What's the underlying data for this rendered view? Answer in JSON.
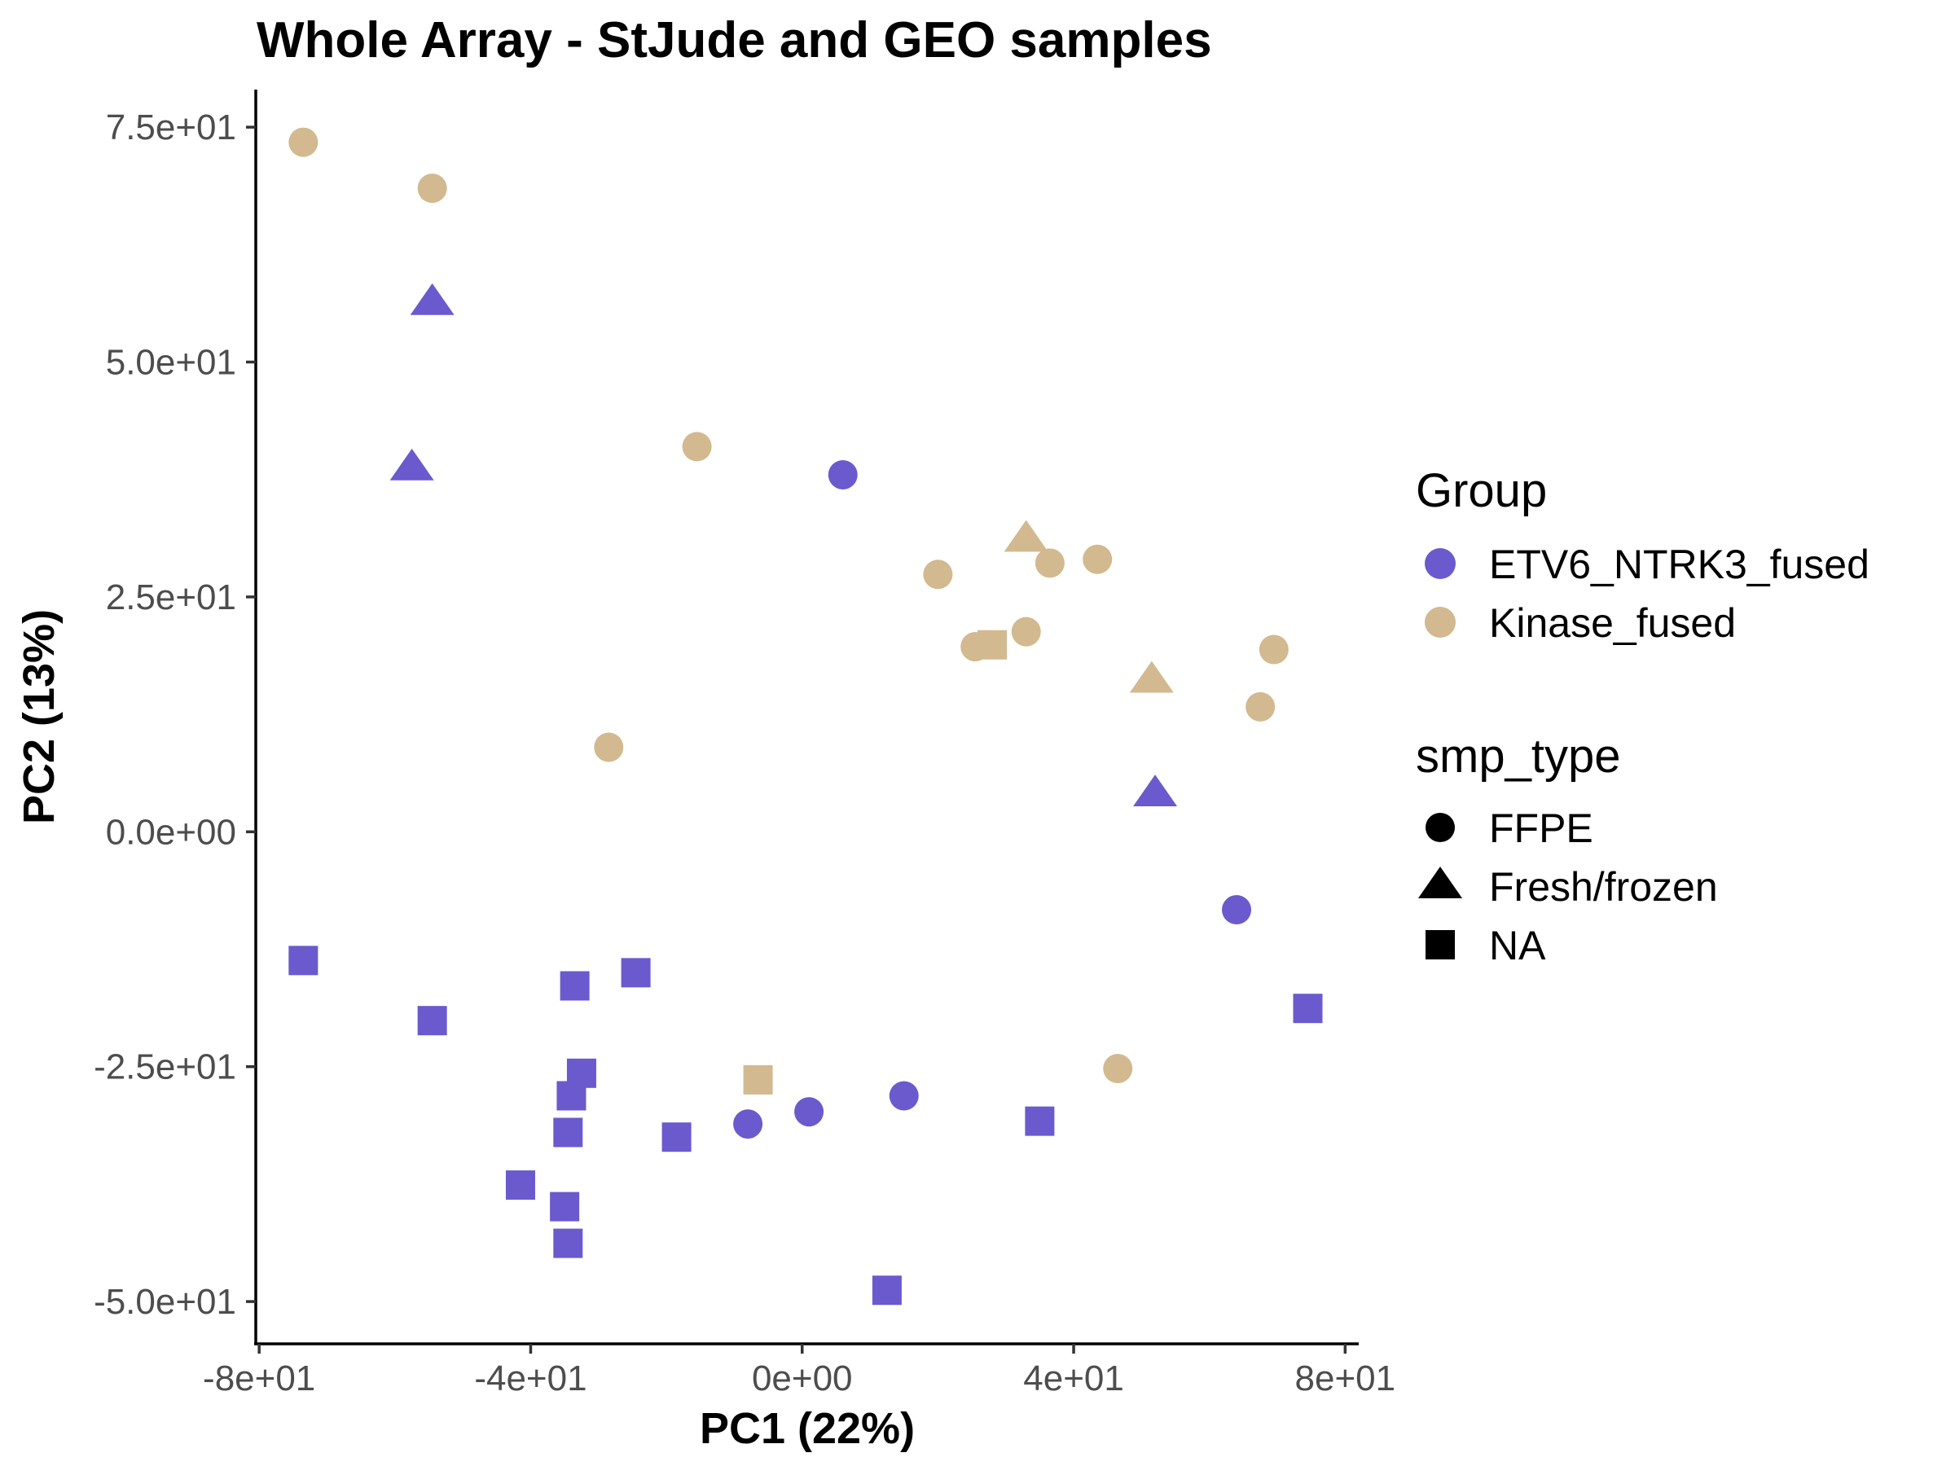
{
  "chart_data": {
    "type": "scatter",
    "title": "Whole Array - StJude and GEO samples",
    "xlabel": "PC1 (22%)",
    "ylabel": "PC2 (13%)",
    "xlim": [
      -80.5,
      82
    ],
    "ylim": [
      -54.5,
      79
    ],
    "x_ticks": [
      {
        "value": -80,
        "label": "-8e+01"
      },
      {
        "value": -40,
        "label": "-4e+01"
      },
      {
        "value": 0,
        "label": "0e+00"
      },
      {
        "value": 40,
        "label": "4e+01"
      },
      {
        "value": 80,
        "label": "8e+01"
      }
    ],
    "y_ticks": [
      {
        "value": 75,
        "label": "7.5e+01"
      },
      {
        "value": 50,
        "label": "5.0e+01"
      },
      {
        "value": 25,
        "label": "2.5e+01"
      },
      {
        "value": 0,
        "label": "0.0e+00"
      },
      {
        "value": -25,
        "label": "-2.5e+01"
      },
      {
        "value": -50,
        "label": "-5.0e+01"
      }
    ],
    "grid": false,
    "legend_placement": "right",
    "legend": {
      "color_title": "Group",
      "groups": [
        {
          "label": "ETV6_NTRK3_fused",
          "color": "#6A5ACD"
        },
        {
          "label": "Kinase_fused",
          "color": "#D2B98F"
        }
      ],
      "shape_title": "smp_type",
      "shapes": [
        {
          "label": "FFPE",
          "shape": "circle"
        },
        {
          "label": "Fresh/frozen",
          "shape": "triangle"
        },
        {
          "label": "NA",
          "shape": "square"
        }
      ]
    },
    "series": [
      {
        "group": "ETV6_NTRK3_fused",
        "smp_type": "FFPE",
        "points": [
          [
            6,
            38
          ],
          [
            64,
            -8.3
          ],
          [
            15,
            -28.1
          ],
          [
            1,
            -29.8
          ],
          [
            -8,
            -31.1
          ]
        ]
      },
      {
        "group": "ETV6_NTRK3_fused",
        "smp_type": "Fresh/frozen",
        "points": [
          [
            -54.5,
            56.3
          ],
          [
            -57.5,
            38.7
          ],
          [
            52,
            4
          ]
        ]
      },
      {
        "group": "ETV6_NTRK3_fused",
        "smp_type": "NA",
        "points": [
          [
            -73.5,
            -13.7
          ],
          [
            -54.5,
            -20.1
          ],
          [
            -33.5,
            -16.4
          ],
          [
            -24.5,
            -15
          ],
          [
            -32.5,
            -25.7
          ],
          [
            -34,
            -28.1
          ],
          [
            -34.5,
            -32
          ],
          [
            -18.5,
            -32.5
          ],
          [
            -41.5,
            -37.6
          ],
          [
            -35,
            -39.9
          ],
          [
            -34.5,
            -43.8
          ],
          [
            12.5,
            -48.8
          ],
          [
            35,
            -30.8
          ],
          [
            74.5,
            -18.8
          ]
        ]
      },
      {
        "group": "Kinase_fused",
        "smp_type": "FFPE",
        "points": [
          [
            -73.5,
            73.4
          ],
          [
            -54.5,
            68.5
          ],
          [
            -15.5,
            41
          ],
          [
            -28.5,
            9
          ],
          [
            20,
            27.4
          ],
          [
            25.5,
            19.7
          ],
          [
            33,
            21.3
          ],
          [
            36.5,
            28.6
          ],
          [
            43.5,
            29
          ],
          [
            69.5,
            19.4
          ],
          [
            67.5,
            13.3
          ],
          [
            46.5,
            -25.2
          ]
        ]
      },
      {
        "group": "Kinase_fused",
        "smp_type": "Fresh/frozen",
        "points": [
          [
            33,
            31.1
          ],
          [
            51.5,
            16.1
          ]
        ]
      },
      {
        "group": "Kinase_fused",
        "smp_type": "NA",
        "points": [
          [
            28,
            19.9
          ],
          [
            -6.5,
            -26.4
          ]
        ]
      }
    ]
  }
}
